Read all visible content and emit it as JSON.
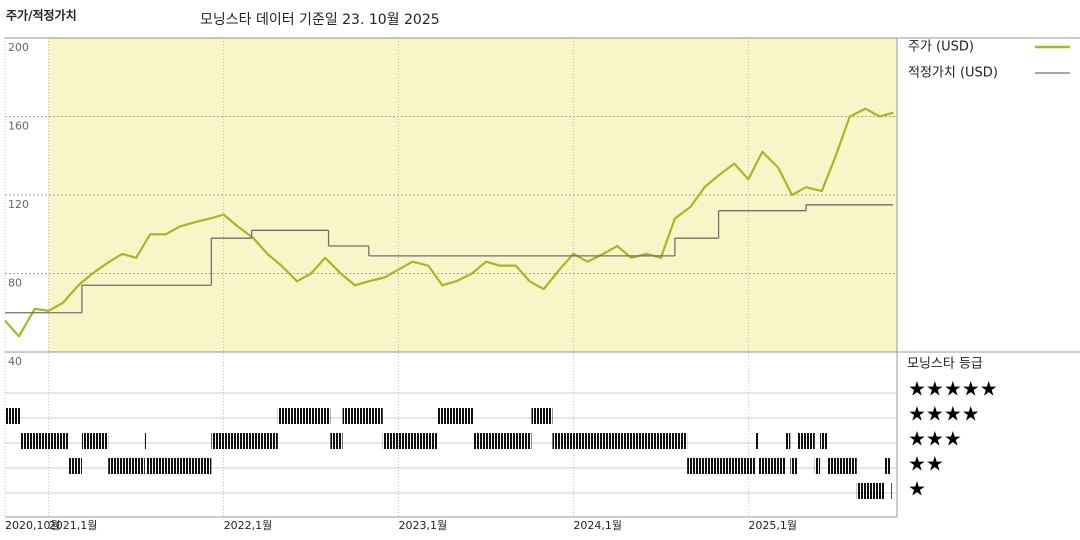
{
  "chart_data": {
    "type": "line",
    "title": "주가/적정가치",
    "subtitle": "모닝스타 데이터 기준일 23. 10월 2025",
    "xlim": [
      2020.75,
      2025.85
    ],
    "xticks": [
      {
        "value": 2020.75,
        "label": "2020,10월"
      },
      {
        "value": 2021,
        "label": "2021,1월"
      },
      {
        "value": 2022,
        "label": "2022,1월"
      },
      {
        "value": 2023,
        "label": "2023,1월"
      },
      {
        "value": 2024,
        "label": "2024,1월"
      },
      {
        "value": 2025,
        "label": "2025,1월"
      }
    ],
    "ylim": [
      40,
      200
    ],
    "yticks": [
      40,
      80,
      120,
      160,
      200
    ],
    "grid": true,
    "series": [
      {
        "name": "주가 (USD)",
        "color": "#a8b820",
        "x": [
          2020.75,
          2020.83,
          2020.92,
          2021.0,
          2021.08,
          2021.17,
          2021.25,
          2021.33,
          2021.42,
          2021.5,
          2021.58,
          2021.67,
          2021.75,
          2021.83,
          2021.92,
          2022.0,
          2022.08,
          2022.17,
          2022.25,
          2022.33,
          2022.42,
          2022.5,
          2022.58,
          2022.67,
          2022.75,
          2022.83,
          2022.92,
          2023.0,
          2023.08,
          2023.17,
          2023.25,
          2023.33,
          2023.42,
          2023.5,
          2023.58,
          2023.67,
          2023.75,
          2023.83,
          2023.92,
          2024.0,
          2024.08,
          2024.17,
          2024.25,
          2024.33,
          2024.42,
          2024.5,
          2024.58,
          2024.67,
          2024.75,
          2024.83,
          2024.92,
          2025.0,
          2025.08,
          2025.17,
          2025.25,
          2025.33,
          2025.42,
          2025.5,
          2025.58,
          2025.67,
          2025.75,
          2025.83
        ],
        "values": [
          56,
          48,
          62,
          61,
          65,
          74,
          80,
          85,
          90,
          88,
          100,
          100,
          104,
          106,
          108,
          110,
          104,
          98,
          90,
          84,
          76,
          80,
          88,
          80,
          74,
          76,
          78,
          82,
          86,
          84,
          74,
          76,
          80,
          86,
          84,
          84,
          76,
          72,
          82,
          90,
          86,
          90,
          94,
          88,
          90,
          88,
          108,
          114,
          124,
          130,
          136,
          128,
          142,
          134,
          120,
          124,
          122,
          140,
          160,
          164,
          160,
          162
        ]
      },
      {
        "name": "적정가치 (USD)",
        "color": "#707070",
        "x": [
          2020.75,
          2021.19,
          2021.93,
          2022.16,
          2022.6,
          2022.83,
          2024.58,
          2024.83,
          2025.33
        ],
        "values": [
          60,
          74,
          98,
          102,
          94,
          89,
          98,
          112,
          115
        ]
      }
    ],
    "rating_title": "모닝스타 등급",
    "rating_levels": [
      {
        "value": 5,
        "label": "★★★★★"
      },
      {
        "value": 4,
        "label": "★★★★"
      },
      {
        "value": 3,
        "label": "★★★"
      },
      {
        "value": 2,
        "label": "★★"
      },
      {
        "value": 1,
        "label": "★"
      }
    ],
    "ratings": [
      {
        "start": 2020.75,
        "end": 2020.84,
        "stars": 4
      },
      {
        "start": 2020.84,
        "end": 2021.11,
        "stars": 3
      },
      {
        "start": 2021.11,
        "end": 2021.19,
        "stars": 2
      },
      {
        "start": 2021.19,
        "end": 2021.34,
        "stars": 3
      },
      {
        "start": 2021.34,
        "end": 2021.55,
        "stars": 2
      },
      {
        "start": 2021.55,
        "end": 2021.56,
        "stars": 3
      },
      {
        "start": 2021.56,
        "end": 2021.93,
        "stars": 2
      },
      {
        "start": 2021.93,
        "end": 2022.31,
        "stars": 3
      },
      {
        "start": 2022.31,
        "end": 2022.61,
        "stars": 4
      },
      {
        "start": 2022.61,
        "end": 2022.68,
        "stars": 3
      },
      {
        "start": 2022.68,
        "end": 2022.91,
        "stars": 4
      },
      {
        "start": 2022.91,
        "end": 2023.22,
        "stars": 3
      },
      {
        "start": 2023.22,
        "end": 2023.43,
        "stars": 4
      },
      {
        "start": 2023.43,
        "end": 2023.76,
        "stars": 3
      },
      {
        "start": 2023.76,
        "end": 2023.88,
        "stars": 4
      },
      {
        "start": 2023.88,
        "end": 2024.65,
        "stars": 3
      },
      {
        "start": 2024.65,
        "end": 2025.04,
        "stars": 2
      },
      {
        "start": 2025.04,
        "end": 2025.06,
        "stars": 3
      },
      {
        "start": 2025.06,
        "end": 2025.21,
        "stars": 2
      },
      {
        "start": 2025.21,
        "end": 2025.24,
        "stars": 3
      },
      {
        "start": 2025.24,
        "end": 2025.28,
        "stars": 2
      },
      {
        "start": 2025.28,
        "end": 2025.38,
        "stars": 3
      },
      {
        "start": 2025.38,
        "end": 2025.41,
        "stars": 2
      },
      {
        "start": 2025.41,
        "end": 2025.45,
        "stars": 3
      },
      {
        "start": 2025.45,
        "end": 2025.62,
        "stars": 2
      },
      {
        "start": 2025.62,
        "end": 2025.78,
        "stars": 1
      },
      {
        "start": 2025.78,
        "end": 2025.81,
        "stars": 2
      },
      {
        "start": 2025.81,
        "end": 2025.82,
        "stars": 1
      }
    ]
  }
}
